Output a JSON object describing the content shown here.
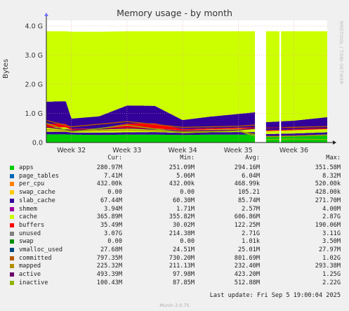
{
  "window": {
    "title": "Memory usage - by month"
  },
  "side_text": "RRDTOOL / TOBI OETIKER",
  "footer": {
    "last_update": "Last update:  Fri Sep  5 19:00:04 2025",
    "version": "Munin 2.0.75"
  },
  "legend": {
    "headers": {
      "cur": "Cur:",
      "min": "Min:",
      "avg": "Avg:",
      "max": "Max:"
    },
    "rows": [
      {
        "name": "apps",
        "color": "#00cc00",
        "cur": "280.97M",
        "min": "251.09M",
        "avg": "294.16M",
        "max": "351.58M"
      },
      {
        "name": "page_tables",
        "color": "#0066b3",
        "cur": "7.41M",
        "min": "5.06M",
        "avg": "6.04M",
        "max": "8.32M"
      },
      {
        "name": "per_cpu",
        "color": "#ff8000",
        "cur": "432.00k",
        "min": "432.00k",
        "avg": "468.99k",
        "max": "520.00k"
      },
      {
        "name": "swap_cache",
        "color": "#ffcc00",
        "cur": "0.00",
        "min": "0.00",
        "avg": "105.21",
        "max": "428.00k"
      },
      {
        "name": "slab_cache",
        "color": "#330099",
        "cur": "67.44M",
        "min": "60.30M",
        "avg": "85.74M",
        "max": "271.70M"
      },
      {
        "name": "shmem",
        "color": "#990099",
        "cur": "3.94M",
        "min": "1.71M",
        "avg": "2.57M",
        "max": "4.00M"
      },
      {
        "name": "cache",
        "color": "#ccff00",
        "cur": "365.89M",
        "min": "355.82M",
        "avg": "606.86M",
        "max": "2.87G"
      },
      {
        "name": "buffers",
        "color": "#ff0000",
        "cur": "35.49M",
        "min": "30.02M",
        "avg": "122.25M",
        "max": "190.06M"
      },
      {
        "name": "unused",
        "color": "#808080",
        "cur": "3.07G",
        "min": "214.38M",
        "avg": "2.71G",
        "max": "3.11G"
      },
      {
        "name": "swap",
        "color": "#008f00",
        "cur": "0.00",
        "min": "0.00",
        "avg": "1.01k",
        "max": "3.50M"
      },
      {
        "name": "vmalloc_used",
        "color": "#00487d",
        "cur": "27.68M",
        "min": "24.51M",
        "avg": "25.01M",
        "max": "27.97M"
      },
      {
        "name": "committed",
        "color": "#b35a00",
        "cur": "797.35M",
        "min": "730.20M",
        "avg": "801.69M",
        "max": "1.02G"
      },
      {
        "name": "mapped",
        "color": "#b38f00",
        "cur": "225.32M",
        "min": "211.13M",
        "avg": "232.40M",
        "max": "293.38M"
      },
      {
        "name": "active",
        "color": "#6b006b",
        "cur": "493.39M",
        "min": "97.98M",
        "avg": "423.20M",
        "max": "1.25G"
      },
      {
        "name": "inactive",
        "color": "#8fb300",
        "cur": "100.43M",
        "min": "87.85M",
        "avg": "512.88M",
        "max": "2.22G"
      }
    ]
  },
  "chart_data": {
    "type": "area",
    "title": "Memory usage - by month",
    "ylabel": "Bytes",
    "xlabel": "",
    "x_tick_labels": [
      "Week 32",
      "Week 33",
      "Week 34",
      "Week 35",
      "Week 36"
    ],
    "y_tick_labels": [
      "0.0",
      "1.0 G",
      "2.0 G",
      "3.0 G",
      "4.0 G"
    ],
    "ylim_gb": [
      0,
      4
    ],
    "grid": true,
    "x_range_weeks": [
      31.55,
      36.6
    ],
    "gaps_weeks": [
      [
        35.3,
        35.5
      ],
      [
        35.74,
        35.77
      ]
    ],
    "stacked_series": [
      {
        "name": "apps",
        "color": "#00cc00",
        "points": [
          [
            31.55,
            0.28
          ],
          [
            31.9,
            0.28
          ],
          [
            32.0,
            0.27
          ],
          [
            32.5,
            0.26
          ],
          [
            33.0,
            0.27
          ],
          [
            33.5,
            0.27
          ],
          [
            34.0,
            0.26
          ],
          [
            34.5,
            0.27
          ],
          [
            35.0,
            0.27
          ],
          [
            35.3,
            0.28
          ],
          [
            35.5,
            0.22
          ],
          [
            36.0,
            0.24
          ],
          [
            36.6,
            0.28
          ]
        ]
      },
      {
        "name": "slab_cache",
        "color": "#330099",
        "points": [
          [
            31.55,
            0.09
          ],
          [
            31.9,
            0.09
          ],
          [
            32.0,
            0.07
          ],
          [
            32.5,
            0.08
          ],
          [
            33.0,
            0.08
          ],
          [
            33.5,
            0.09
          ],
          [
            34.0,
            0.07
          ],
          [
            34.5,
            0.08
          ],
          [
            35.0,
            0.09
          ],
          [
            35.3,
            0.08
          ],
          [
            35.5,
            0.07
          ],
          [
            36.0,
            0.07
          ],
          [
            36.6,
            0.07
          ]
        ]
      },
      {
        "name": "cache",
        "color": "#ccff00",
        "points": [
          [
            31.55,
            0.15
          ],
          [
            31.9,
            0.15
          ],
          [
            32.0,
            0.1
          ],
          [
            32.5,
            0.11
          ],
          [
            33.0,
            0.12
          ],
          [
            33.5,
            0.12
          ],
          [
            34.0,
            0.09
          ],
          [
            34.5,
            0.1
          ],
          [
            35.0,
            0.11
          ],
          [
            35.3,
            0.12
          ],
          [
            35.5,
            0.1
          ],
          [
            36.0,
            0.11
          ],
          [
            36.6,
            0.11
          ]
        ]
      },
      {
        "name": "buffers",
        "color": "#ff0000",
        "points": [
          [
            31.55,
            0.12
          ],
          [
            31.9,
            0.12
          ],
          [
            32.0,
            0.03
          ],
          [
            32.5,
            0.03
          ],
          [
            33.0,
            0.18
          ],
          [
            33.5,
            0.18
          ],
          [
            34.0,
            0.04
          ],
          [
            34.5,
            0.04
          ],
          [
            35.0,
            0.04
          ],
          [
            35.3,
            0.04
          ],
          [
            35.5,
            0.03
          ],
          [
            36.0,
            0.03
          ],
          [
            36.6,
            0.03
          ]
        ]
      },
      {
        "name": "committed",
        "color": "#330099",
        "points": [
          [
            31.55,
            0.76
          ],
          [
            31.9,
            0.78
          ],
          [
            32.0,
            0.35
          ],
          [
            32.5,
            0.42
          ],
          [
            33.0,
            0.62
          ],
          [
            33.5,
            0.6
          ],
          [
            34.0,
            0.31
          ],
          [
            34.5,
            0.4
          ],
          [
            35.0,
            0.47
          ],
          [
            35.3,
            0.52
          ],
          [
            35.5,
            0.28
          ],
          [
            36.0,
            0.3
          ],
          [
            36.6,
            0.38
          ]
        ]
      },
      {
        "name": "unused",
        "color": "#ccff00",
        "points": [
          [
            31.55,
            2.42
          ],
          [
            31.9,
            2.4
          ],
          [
            32.0,
            2.98
          ],
          [
            32.5,
            2.9
          ],
          [
            33.0,
            2.55
          ],
          [
            33.5,
            2.56
          ],
          [
            34.0,
            3.05
          ],
          [
            34.5,
            2.93
          ],
          [
            35.0,
            2.84
          ],
          [
            35.3,
            2.78
          ],
          [
            35.5,
            3.12
          ],
          [
            36.0,
            3.07
          ],
          [
            36.6,
            2.95
          ]
        ]
      }
    ],
    "line_series": [
      {
        "name": "committed",
        "color": "#b35a00",
        "points": [
          [
            31.55,
            0.76
          ],
          [
            32.0,
            0.54
          ],
          [
            33.0,
            0.72
          ],
          [
            34.0,
            0.52
          ],
          [
            35.0,
            0.56
          ],
          [
            35.3,
            0.6
          ],
          [
            35.5,
            0.5
          ],
          [
            36.6,
            0.55
          ]
        ]
      },
      {
        "name": "mapped",
        "color": "#b38f00",
        "points": [
          [
            31.55,
            0.44
          ],
          [
            32.0,
            0.39
          ],
          [
            33.0,
            0.43
          ],
          [
            34.0,
            0.37
          ],
          [
            35.0,
            0.4
          ],
          [
            35.5,
            0.2
          ],
          [
            36.0,
            0.22
          ],
          [
            36.6,
            0.25
          ]
        ]
      },
      {
        "name": "active",
        "color": "#6b006b",
        "points": [
          [
            31.55,
            0.53
          ],
          [
            32.0,
            0.42
          ],
          [
            33.0,
            0.5
          ],
          [
            34.0,
            0.4
          ],
          [
            35.0,
            0.43
          ],
          [
            35.5,
            0.52
          ],
          [
            36.0,
            0.48
          ],
          [
            36.6,
            0.5
          ]
        ]
      },
      {
        "name": "inactive",
        "color": "#8fb300",
        "points": [
          [
            31.55,
            0.66
          ],
          [
            32.0,
            0.36
          ],
          [
            33.0,
            0.6
          ],
          [
            34.0,
            0.33
          ],
          [
            35.0,
            0.4
          ],
          [
            35.5,
            0.1
          ],
          [
            36.0,
            0.12
          ],
          [
            36.6,
            0.1
          ]
        ]
      }
    ]
  }
}
